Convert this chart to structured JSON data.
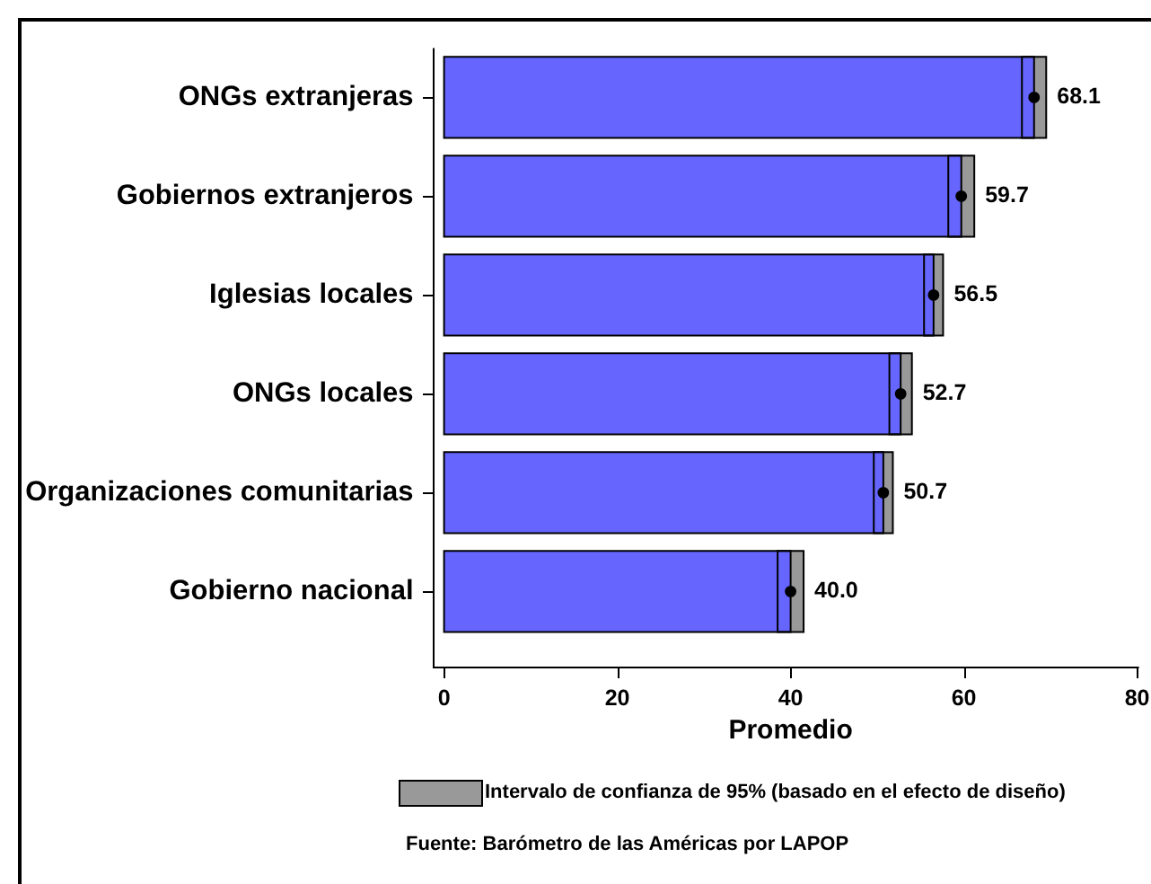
{
  "chart_data": {
    "type": "bar",
    "orientation": "horizontal",
    "categories": [
      "ONGs extranjeras",
      "Gobiernos extranjeros",
      "Iglesias locales",
      "ONGs locales",
      "Organizaciones comunitarias",
      "Gobierno nacional"
    ],
    "series": [
      {
        "color": "#6666ff",
        "values": [
          68.1,
          59.7,
          56.5,
          52.7,
          50.7,
          40.0
        ],
        "errors": [
          1.4,
          1.5,
          1.1,
          1.3,
          1.1,
          1.5
        ],
        "value_labels": [
          "68.1",
          "59.7",
          "56.5",
          "52.7",
          "50.7",
          "40.0"
        ]
      },
      {
        "type": "scatter",
        "color": "#000000",
        "x": [
          "ONGs extranjeras",
          "Gobiernos extranjeros",
          "Iglesias locales",
          "ONGs locales",
          "Organizaciones comunitarias",
          "Gobierno nacional"
        ],
        "values": [
          68.1,
          59.7,
          56.5,
          52.7,
          50.7,
          40.0
        ],
        "marker": "circle"
      }
    ],
    "xlim": [
      0,
      80
    ],
    "xticks": [
      0,
      20,
      40,
      60,
      80
    ],
    "xlabel": "Promedio",
    "annotations": [
      "Intervalo de confianza de 95% (basado en el efecto de diseño)",
      "Fuente: Barómetro de las Américas por LAPOP"
    ]
  }
}
